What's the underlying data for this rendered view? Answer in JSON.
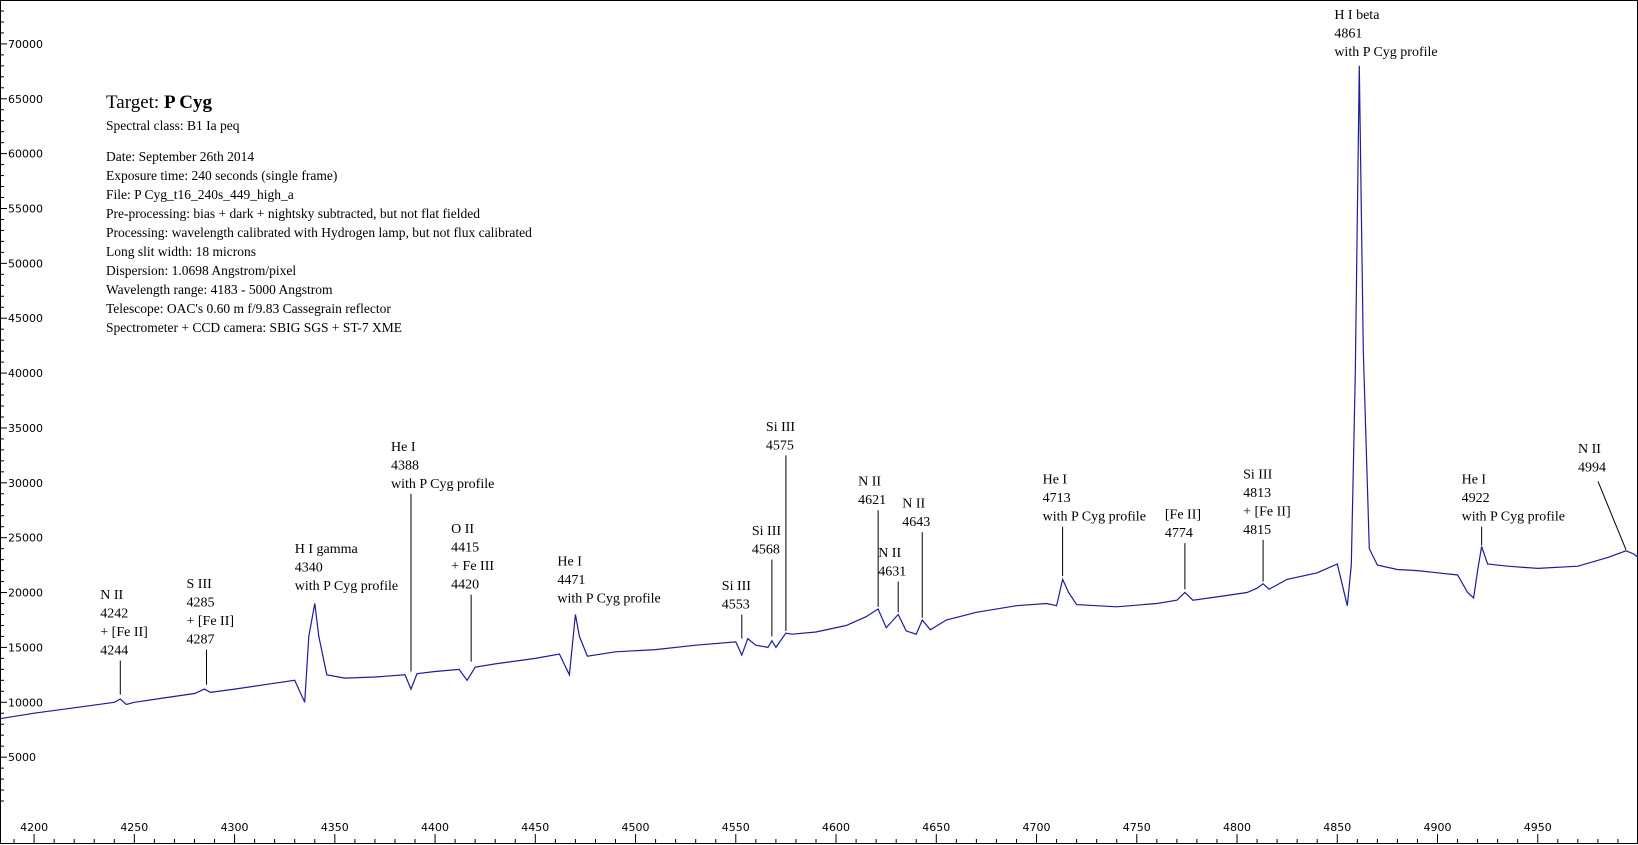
{
  "info": {
    "target_label": "Target:",
    "target_value": "P Cyg",
    "spectral_class": "Spectral class: B1 Ia peq",
    "lines": [
      "Date: September 26th 2014",
      "Exposure time: 240 seconds (single frame)",
      "File: P Cyg_t16_240s_449_high_a",
      "Pre-processing: bias + dark + nightsky subtracted, but not flat fielded",
      "Processing: wavelength calibrated with Hydrogen lamp, but not flux calibrated",
      "Long slit width: 18 microns",
      "Dispersion: 1.0698 Angstrom/pixel",
      "Wavelength range: 4183 - 5000 Angstrom",
      "Telescope: OAC's 0.60 m f/9.83 Cassegrain reflector",
      "Spectrometer + CCD camera: SBIG SGS + ST-7 XME"
    ]
  },
  "chart_data": {
    "type": "line",
    "xlim": [
      4183,
      5000
    ],
    "ylim": [
      0,
      74000
    ],
    "x_ticks": [
      4200,
      4250,
      4300,
      4350,
      4400,
      4450,
      4500,
      4550,
      4600,
      4650,
      4700,
      4750,
      4800,
      4850,
      4900,
      4950
    ],
    "y_ticks": [
      5000,
      10000,
      15000,
      20000,
      25000,
      30000,
      35000,
      40000,
      45000,
      50000,
      55000,
      60000,
      65000,
      70000
    ],
    "grid": false,
    "line_color": "#1c1c9c",
    "series": [
      {
        "x": [
          4183,
          4200,
          4220,
          4240,
          4243,
          4246,
          4250,
          4265,
          4280,
          4285,
          4288,
          4300,
          4315,
          4330,
          4335,
          4337,
          4340,
          4342,
          4346,
          4355,
          4370,
          4385,
          4388,
          4391,
          4400,
          4412,
          4416,
          4420,
          4430,
          4450,
          4462,
          4467,
          4470,
          4472,
          4476,
          4490,
          4510,
          4530,
          4550,
          4553,
          4556,
          4560,
          4566,
          4568,
          4570,
          4575,
          4578,
          4590,
          4605,
          4615,
          4621,
          4625,
          4631,
          4635,
          4640,
          4643,
          4647,
          4655,
          4670,
          4690,
          4705,
          4710,
          4713,
          4716,
          4720,
          4740,
          4760,
          4770,
          4774,
          4778,
          4790,
          4805,
          4810,
          4813,
          4816,
          4825,
          4840,
          4850,
          4855,
          4857,
          4859,
          4861,
          4863,
          4866,
          4870,
          4880,
          4890,
          4900,
          4910,
          4915,
          4918,
          4920,
          4922,
          4925,
          4935,
          4950,
          4970,
          4985,
          4994,
          4998,
          5000
        ],
        "y": [
          8500,
          9000,
          9500,
          10000,
          10300,
          9800,
          10000,
          10400,
          10800,
          11200,
          10900,
          11200,
          11600,
          12000,
          10000,
          16000,
          19000,
          16000,
          12500,
          12200,
          12300,
          12500,
          11200,
          12600,
          12800,
          13000,
          12000,
          13200,
          13500,
          14000,
          14400,
          12500,
          18000,
          16000,
          14200,
          14600,
          14800,
          15200,
          15500,
          14300,
          15800,
          15200,
          15000,
          15600,
          15000,
          16300,
          16200,
          16400,
          17000,
          17800,
          18500,
          16800,
          18000,
          16500,
          16200,
          17500,
          16600,
          17500,
          18200,
          18800,
          19000,
          18800,
          21200,
          20000,
          18900,
          18700,
          19000,
          19300,
          20000,
          19300,
          19600,
          20000,
          20400,
          20800,
          20300,
          21200,
          21800,
          22600,
          18800,
          22500,
          40000,
          68000,
          42000,
          24000,
          22500,
          22100,
          22000,
          21800,
          21600,
          20000,
          19500,
          22000,
          24200,
          22600,
          22400,
          22200,
          22400,
          23200,
          23800,
          23500,
          23200
        ]
      }
    ],
    "annotations": [
      {
        "lines": [
          "N II",
          "4242",
          "+ [Fe II]",
          "4244"
        ],
        "x": 4243,
        "tip": 10700,
        "base": 13800
      },
      {
        "lines": [
          "S III",
          "4285",
          "+ [Fe II]",
          "4287"
        ],
        "x": 4286,
        "tip": 11600,
        "base": 14800
      },
      {
        "lines": [
          "H I gamma",
          "4340",
          "with P Cyg profile"
        ],
        "x": 4340,
        "tip": 19300,
        "base": null
      },
      {
        "lines": [
          "He I",
          "4388",
          "with P Cyg profile"
        ],
        "x": 4388,
        "tip": 12800,
        "base": 29000
      },
      {
        "lines": [
          "O II",
          "4415",
          "+ Fe III",
          "4420"
        ],
        "x": 4418,
        "tip": 13700,
        "base": 19800
      },
      {
        "lines": [
          "He I",
          "4471",
          "with P Cyg profile"
        ],
        "x": 4471,
        "tip": 18200,
        "base": null
      },
      {
        "lines": [
          "Si III",
          "4553"
        ],
        "x": 4553,
        "tip": 15800,
        "base": 18000
      },
      {
        "lines": [
          "Si III",
          "4568"
        ],
        "x": 4568,
        "tip": 16000,
        "base": 23000
      },
      {
        "lines": [
          "Si III",
          "4575"
        ],
        "x": 4575,
        "tip": 16500,
        "base": 32500
      },
      {
        "lines": [
          "N II",
          "4621"
        ],
        "x": 4621,
        "tip": 18700,
        "base": 27500
      },
      {
        "lines": [
          "N II",
          "4631"
        ],
        "x": 4631,
        "tip": 18200,
        "base": 21000
      },
      {
        "lines": [
          "N II",
          "4643"
        ],
        "x": 4643,
        "tip": 17700,
        "base": 25500
      },
      {
        "lines": [
          "He I",
          "4713",
          "with P Cyg profile"
        ],
        "x": 4713,
        "tip": 21500,
        "base": 26000
      },
      {
        "lines": [
          "[Fe II]",
          "4774"
        ],
        "x": 4774,
        "tip": 20300,
        "base": 24500
      },
      {
        "lines": [
          "Si III",
          "4813",
          "+ [Fe II]",
          "4815"
        ],
        "x": 4813,
        "tip": 21000,
        "base": 24800
      },
      {
        "lines": [
          "H I beta",
          "4861",
          "with P Cyg profile"
        ],
        "x": 4861,
        "tip": 68000,
        "base": null
      },
      {
        "lines": [
          "He I",
          "4922",
          "with P Cyg profile"
        ],
        "x": 4922,
        "tip": 24300,
        "base": 26000
      },
      {
        "lines": [
          "N II",
          "4994"
        ],
        "x": 4994,
        "tip": 23900,
        "base": 30500,
        "diag": true
      }
    ]
  }
}
